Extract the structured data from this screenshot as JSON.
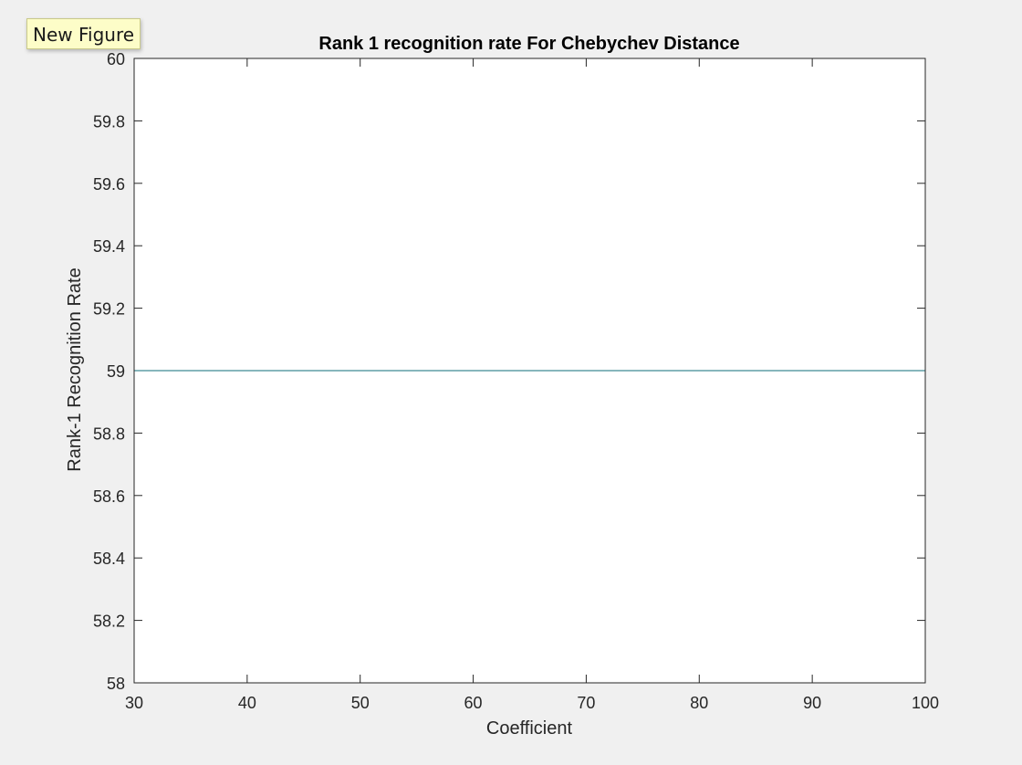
{
  "tooltip": {
    "label": "New Figure"
  },
  "chart_data": {
    "type": "line",
    "title": "Rank 1 recognition rate For Chebychev Distance",
    "xlabel": "Coefficient",
    "ylabel": "Rank-1 Recognition Rate",
    "xlim": [
      30,
      100
    ],
    "ylim": [
      58,
      60
    ],
    "xticks": [
      30,
      40,
      50,
      60,
      70,
      80,
      90,
      100
    ],
    "yticks": [
      58,
      58.2,
      58.4,
      58.6,
      58.8,
      59,
      59.2,
      59.4,
      59.6,
      59.8,
      60
    ],
    "xticklabels": [
      "30",
      "40",
      "50",
      "60",
      "70",
      "80",
      "90",
      "100"
    ],
    "yticklabels": [
      "58",
      "58.2",
      "58.4",
      "58.6",
      "58.8",
      "59",
      "59.2",
      "59.4",
      "59.6",
      "59.8",
      "60"
    ],
    "grid": false,
    "series": [
      {
        "x": [
          30,
          100
        ],
        "values": [
          59,
          59
        ],
        "color": "#0e6e7a"
      }
    ]
  }
}
